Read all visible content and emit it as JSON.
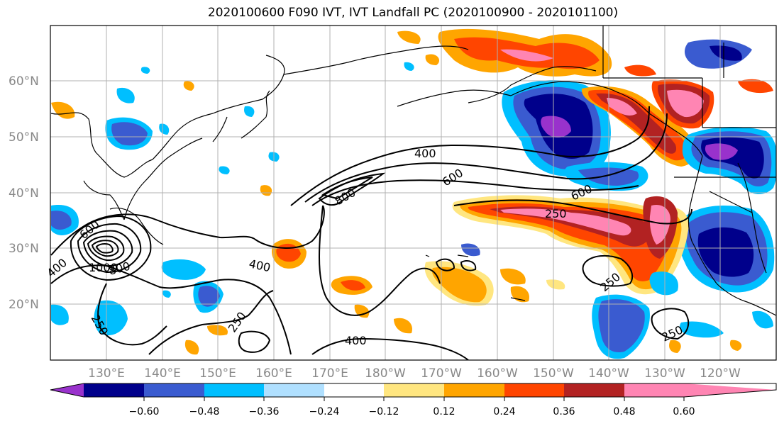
{
  "title": "2020100600 F090 IVT, IVT Landfall PC (2020100900 - 2020101100)",
  "lat_ticks": [
    "60°N",
    "50°N",
    "40°N",
    "30°N",
    "20°N"
  ],
  "lon_ticks": [
    "130°E",
    "140°E",
    "150°E",
    "160°E",
    "170°E",
    "180°W",
    "170°W",
    "160°W",
    "150°W",
    "140°W",
    "130°W",
    "120°W"
  ],
  "colorbar": {
    "colors": [
      "#9932cc",
      "#00008b",
      "#3a5bd0",
      "#00bfff",
      "#b0e0ff",
      "#ffffff",
      "#ffe680",
      "#ffa500",
      "#ff4500",
      "#b22222",
      "#ff85b3"
    ],
    "tick_labels": [
      "−0.60",
      "−0.48",
      "−0.36",
      "−0.24",
      "−0.12",
      "0.12",
      "0.24",
      "0.36",
      "0.48",
      "0.60"
    ]
  },
  "contour_labels": [
    "400",
    "600",
    "800",
    "600",
    "250",
    "600",
    "400",
    "800",
    "1000",
    "400",
    "250",
    "250",
    "400",
    "250",
    "250"
  ]
}
